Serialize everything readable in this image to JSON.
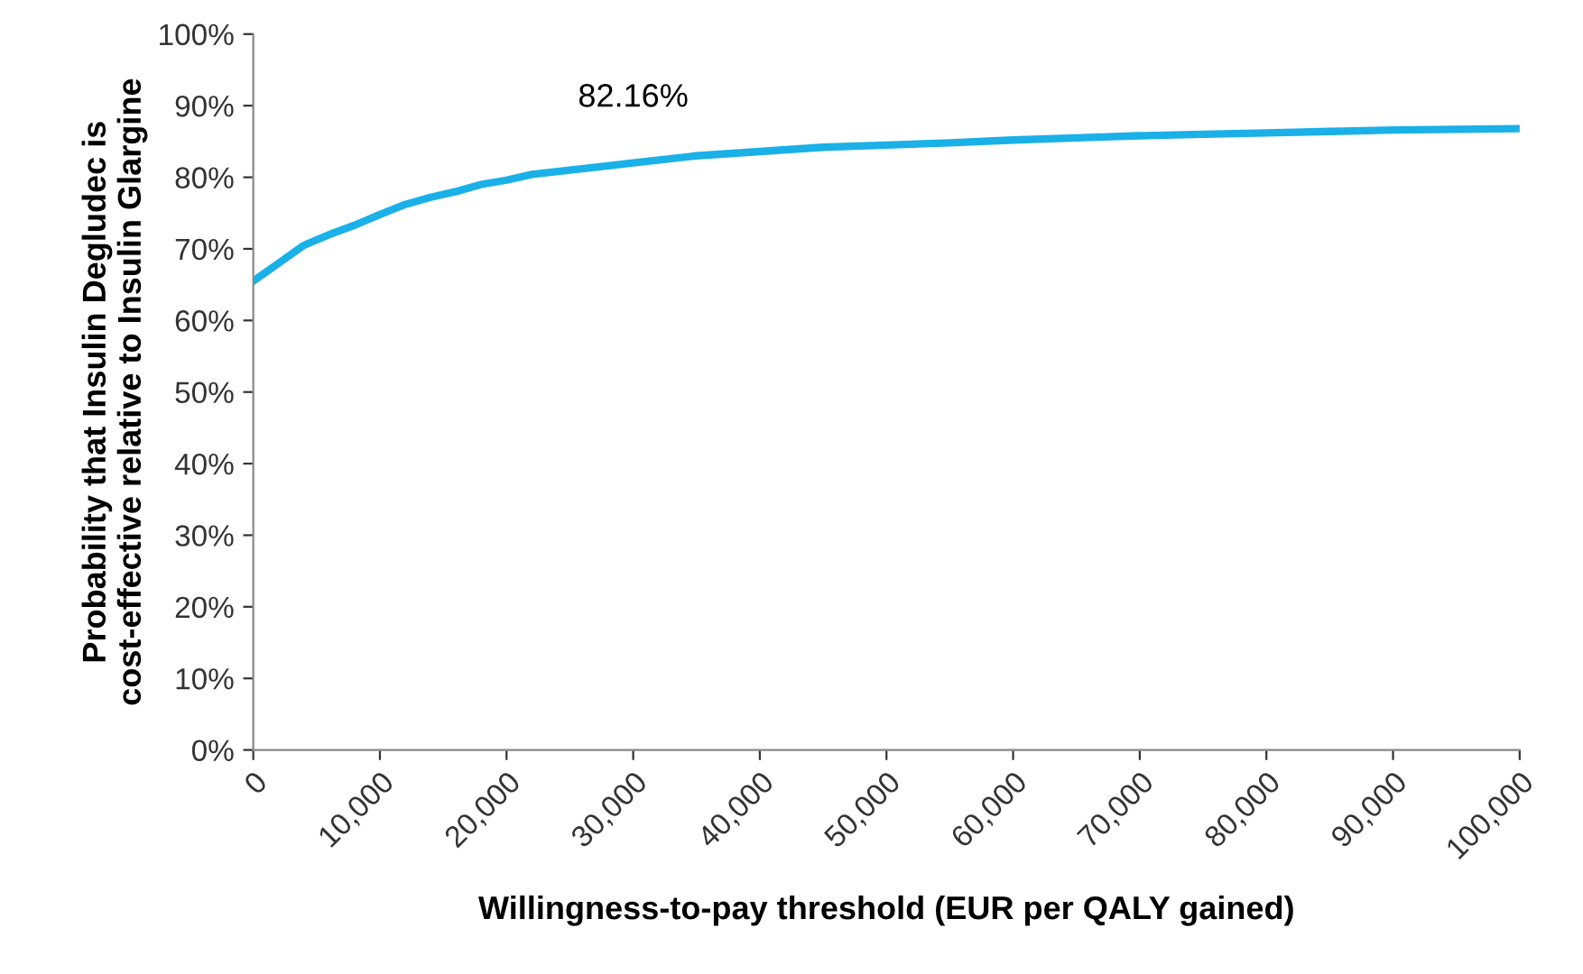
{
  "chart_data": {
    "type": "line",
    "xlabel": "Willingness-to-pay threshold (EUR per QALY gained)",
    "ylabel": "Probability that Insulin Degludec is cost-effective relative to Insulin Glargine",
    "x": [
      0,
      2000,
      4000,
      6000,
      8000,
      10000,
      12000,
      14000,
      16000,
      18000,
      20000,
      22000,
      25000,
      28000,
      30000,
      35000,
      40000,
      45000,
      50000,
      55000,
      60000,
      65000,
      70000,
      75000,
      80000,
      85000,
      90000,
      95000,
      100000
    ],
    "series": [
      {
        "color": "#1ab0e8",
        "values": [
          0.655,
          0.68,
          0.705,
          0.72,
          0.733,
          0.748,
          0.762,
          0.772,
          0.78,
          0.79,
          0.796,
          0.804,
          0.81,
          0.816,
          0.82,
          0.83,
          0.836,
          0.842,
          0.845,
          0.848,
          0.852,
          0.855,
          0.858,
          0.86,
          0.862,
          0.864,
          0.866,
          0.867,
          0.868
        ]
      }
    ],
    "annotations": [
      {
        "text": "82.16%",
        "x": 30000,
        "y": 0.8216
      }
    ],
    "xlim": [
      0,
      100000
    ],
    "xticks": [
      0,
      {
        "value": 10000,
        "label": "10,000"
      },
      {
        "value": 20000,
        "label": "20,000"
      },
      {
        "value": 30000,
        "label": "30,000"
      },
      {
        "value": 40000,
        "label": "40,000"
      },
      {
        "value": 50000,
        "label": "50,000"
      },
      {
        "value": 60000,
        "label": "60,000"
      },
      {
        "value": 70000,
        "label": "70,000"
      },
      {
        "value": 80000,
        "label": "80,000"
      },
      {
        "value": 90000,
        "label": "90,000"
      },
      {
        "value": 100000,
        "label": "100,000"
      }
    ],
    "ylim": [
      0,
      1
    ],
    "yticks": [
      {
        "value": 0,
        "label": "0%"
      },
      {
        "value": 0.1,
        "label": "10%"
      },
      {
        "value": 0.2,
        "label": "20%"
      },
      {
        "value": 0.3,
        "label": "30%"
      },
      {
        "value": 0.4,
        "label": "40%"
      },
      {
        "value": 0.5,
        "label": "50%"
      },
      {
        "value": 0.6,
        "label": "60%"
      },
      {
        "value": 0.7,
        "label": "70%"
      },
      {
        "value": 0.8,
        "label": "80%"
      },
      {
        "value": 0.9,
        "label": "90%"
      },
      {
        "value": 1,
        "label": "100%"
      }
    ],
    "grid": false,
    "legend": false,
    "marker": "none",
    "line_style": "solid"
  }
}
